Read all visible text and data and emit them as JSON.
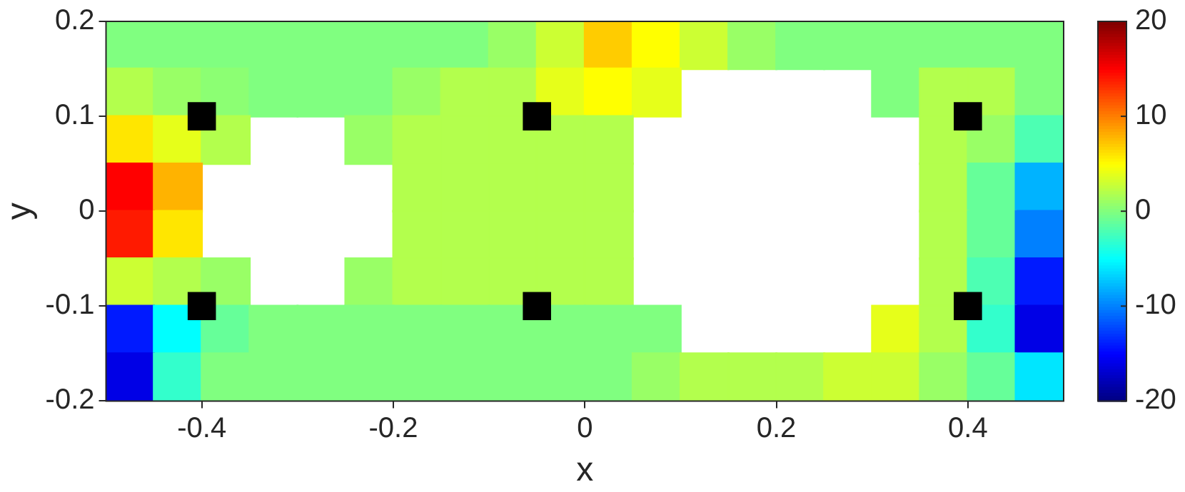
{
  "chart_data": {
    "type": "scatter",
    "xlabel": "x",
    "ylabel": "y",
    "xlim": [
      -0.5,
      0.5
    ],
    "xticks": [
      -0.4,
      -0.2,
      0,
      0.2,
      0.4
    ],
    "ylim": [
      -0.2,
      0.2
    ],
    "yticks": [
      -0.2,
      -0.1,
      0,
      0.1,
      0.2
    ],
    "clim": [
      -20,
      20
    ],
    "cticks": [
      -20,
      -10,
      0,
      10,
      20
    ],
    "marker": "square",
    "series": [
      {
        "x": [
          -0.475,
          -0.425,
          -0.375,
          -0.325,
          -0.275,
          -0.225,
          -0.175,
          -0.125,
          -0.075,
          -0.025,
          0.025,
          0.075,
          0.125,
          0.175,
          0.225,
          0.275,
          0.325,
          0.375,
          0.425,
          0.475,
          -0.475,
          -0.425,
          -0.375,
          -0.325,
          -0.275,
          -0.225,
          -0.175,
          -0.125,
          -0.075,
          -0.025,
          0.025,
          0.075,
          0.325,
          0.375,
          0.425,
          0.475,
          -0.475,
          -0.425,
          -0.375,
          -0.225,
          -0.175,
          -0.125,
          -0.075,
          -0.025,
          0.025,
          0.375,
          0.425,
          0.475,
          -0.475,
          -0.425,
          -0.175,
          -0.125,
          -0.075,
          -0.025,
          0.025,
          0.375,
          0.425,
          0.475,
          -0.475,
          -0.425,
          -0.175,
          -0.125,
          -0.075,
          -0.025,
          0.025,
          0.375,
          0.425,
          0.475,
          -0.475,
          -0.425,
          -0.375,
          -0.225,
          -0.175,
          -0.125,
          -0.075,
          -0.025,
          0.025,
          0.375,
          0.425,
          0.475,
          -0.475,
          -0.425,
          -0.375,
          -0.325,
          -0.275,
          -0.225,
          -0.175,
          -0.125,
          -0.075,
          -0.025,
          0.025,
          0.075,
          0.325,
          0.375,
          0.425,
          0.475,
          -0.475,
          -0.425,
          -0.375,
          -0.325,
          -0.275,
          -0.225,
          -0.175,
          -0.125,
          -0.075,
          -0.025,
          0.025,
          0.075,
          0.125,
          0.175,
          0.225,
          0.275,
          0.325,
          0.375,
          0.425,
          0.475
        ],
        "values": [
          0.175,
          0.175,
          0.175,
          0.175,
          0.175,
          0.175,
          0.175,
          0.175,
          0.175,
          0.175,
          0.175,
          0.175,
          0.175,
          0.175,
          0.175,
          0.175,
          0.175,
          0.175,
          0.175,
          0.175,
          0.125,
          0.125,
          0.125,
          0.125,
          0.125,
          0.125,
          0.125,
          0.125,
          0.125,
          0.125,
          0.125,
          0.125,
          0.125,
          0.125,
          0.125,
          0.125,
          0.075,
          0.075,
          0.075,
          0.075,
          0.075,
          0.075,
          0.075,
          0.075,
          0.075,
          0.075,
          0.075,
          0.075,
          0.025,
          0.025,
          0.025,
          0.025,
          0.025,
          0.025,
          0.025,
          0.025,
          0.025,
          0.025,
          -0.025,
          -0.025,
          -0.025,
          -0.025,
          -0.025,
          -0.025,
          -0.025,
          -0.025,
          -0.025,
          -0.025,
          -0.075,
          -0.075,
          -0.075,
          -0.075,
          -0.075,
          -0.075,
          -0.075,
          -0.075,
          -0.075,
          -0.075,
          -0.075,
          -0.075,
          -0.125,
          -0.125,
          -0.125,
          -0.125,
          -0.125,
          -0.125,
          -0.125,
          -0.125,
          -0.125,
          -0.125,
          -0.125,
          -0.125,
          -0.125,
          -0.125,
          -0.125,
          -0.125,
          -0.175,
          -0.175,
          -0.175,
          -0.175,
          -0.175,
          -0.175,
          -0.175,
          -0.175,
          -0.175,
          -0.175,
          -0.175,
          -0.175,
          -0.175,
          -0.175,
          -0.175,
          -0.175,
          -0.175,
          -0.175,
          -0.175,
          -0.175
        ],
        "cvalues": [
          0,
          0,
          0,
          0,
          0,
          0,
          0,
          0,
          1,
          3,
          7,
          5,
          3,
          1,
          0,
          0,
          0,
          0,
          0,
          0,
          2,
          1,
          0.5,
          0,
          0,
          0,
          1,
          2,
          2,
          4,
          5,
          4,
          0,
          2,
          2,
          0,
          6,
          4,
          2,
          1,
          2,
          2,
          2,
          2,
          2,
          2,
          1,
          -2,
          15,
          8,
          2,
          2,
          2,
          2,
          2,
          2,
          -1,
          -8,
          14,
          6,
          2,
          2,
          2,
          2,
          2,
          2,
          -1,
          -10,
          3,
          2,
          1,
          1,
          2,
          2,
          2,
          2,
          2,
          2,
          -2,
          -14,
          -14,
          -5,
          -1,
          0,
          0,
          0,
          0,
          0,
          0,
          0,
          0,
          0,
          4,
          2,
          -3,
          -16,
          -16,
          -3,
          0,
          0,
          0,
          0,
          0,
          0,
          0,
          0,
          0,
          1,
          2,
          2,
          2,
          3,
          3,
          1,
          -1,
          -6
        ],
        "colors": [
          "#80ff80",
          "#80ff80",
          "#80ff80",
          "#80ff80",
          "#80ff80",
          "#80ff80",
          "#80ff80",
          "#80ff80",
          "#99ff66",
          "#ccff33",
          "#ffcc00",
          "#ffff00",
          "#ccff33",
          "#99ff66",
          "#80ff80",
          "#80ff80",
          "#80ff80",
          "#80ff80",
          "#80ff80",
          "#80ff80",
          "#b3ff4d",
          "#99ff66",
          "#8cff73",
          "#80ff80",
          "#80ff80",
          "#80ff80",
          "#99ff66",
          "#b3ff4d",
          "#b3ff4d",
          "#e6ff1a",
          "#ffff00",
          "#e6ff1a",
          "#80ff80",
          "#b3ff4d",
          "#b3ff4d",
          "#80ff80",
          "#ffe600",
          "#e6ff1a",
          "#b3ff4d",
          "#99ff66",
          "#b3ff4d",
          "#b3ff4d",
          "#b3ff4d",
          "#b3ff4d",
          "#b3ff4d",
          "#b3ff4d",
          "#99ff66",
          "#4dffb3",
          "#ff0000",
          "#ffb300",
          "#b3ff4d",
          "#b3ff4d",
          "#b3ff4d",
          "#b3ff4d",
          "#b3ff4d",
          "#b3ff4d",
          "#66ff99",
          "#00b3ff",
          "#ff1a00",
          "#ffe600",
          "#b3ff4d",
          "#b3ff4d",
          "#b3ff4d",
          "#b3ff4d",
          "#b3ff4d",
          "#b3ff4d",
          "#66ff99",
          "#0080ff",
          "#ccff33",
          "#b3ff4d",
          "#99ff66",
          "#99ff66",
          "#b3ff4d",
          "#b3ff4d",
          "#b3ff4d",
          "#b3ff4d",
          "#b3ff4d",
          "#b3ff4d",
          "#4dffb3",
          "#001aff",
          "#001aff",
          "#00ffff",
          "#66ff99",
          "#80ff80",
          "#80ff80",
          "#80ff80",
          "#80ff80",
          "#80ff80",
          "#80ff80",
          "#80ff80",
          "#80ff80",
          "#80ff80",
          "#e6ff1a",
          "#b3ff4d",
          "#33ffcc",
          "#0000e6",
          "#0000e6",
          "#33ffcc",
          "#80ff80",
          "#80ff80",
          "#80ff80",
          "#80ff80",
          "#80ff80",
          "#80ff80",
          "#80ff80",
          "#80ff80",
          "#80ff80",
          "#99ff66",
          "#b3ff4d",
          "#b3ff4d",
          "#b3ff4d",
          "#ccff33",
          "#ccff33",
          "#99ff66",
          "#66ff99",
          "#00e6ff"
        ]
      },
      {
        "color": "#000000",
        "x": [
          -0.4,
          -0.05,
          0.4,
          -0.4,
          -0.05,
          0.4
        ],
        "values": [
          0.1,
          0.1,
          0.1,
          -0.1,
          -0.1,
          -0.1
        ]
      }
    ]
  }
}
